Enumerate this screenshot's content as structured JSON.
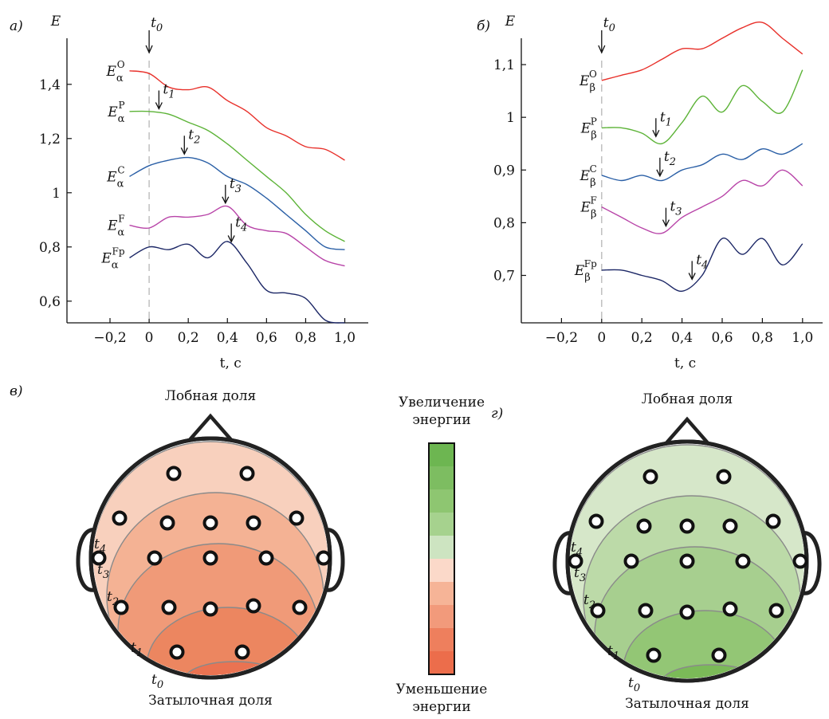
{
  "panels": {
    "a": "а)",
    "b": "б)",
    "c": "в)",
    "d": "г)"
  },
  "t0_label": "t0",
  "chart_data": [
    {
      "id": "a",
      "type": "line",
      "panel_label": "а)",
      "ylabel": "E",
      "xlabel": "t, c",
      "xlim": [
        -0.42,
        1.12
      ],
      "ylim": [
        0.52,
        1.57
      ],
      "x_ticks": [
        -0.2,
        0,
        0.2,
        0.4,
        0.6,
        0.8,
        1.0
      ],
      "x_tick_labels": [
        "−0,2",
        "0",
        "0,2",
        "0,4",
        "0,6",
        "0,8",
        "1,0"
      ],
      "y_ticks": [
        0.6,
        0.8,
        1.0,
        1.2,
        1.4
      ],
      "y_tick_labels": [
        "0,6",
        "0,8",
        "1",
        "1,2",
        "1,4"
      ],
      "x": [
        -0.1,
        0.0,
        0.1,
        0.2,
        0.3,
        0.4,
        0.5,
        0.6,
        0.7,
        0.8,
        0.9,
        1.0
      ],
      "series": [
        {
          "label_base": "E",
          "label_sub": "α",
          "label_sup": "O",
          "color": "#e8302a",
          "values": [
            1.45,
            1.44,
            1.39,
            1.38,
            1.39,
            1.34,
            1.3,
            1.24,
            1.21,
            1.17,
            1.16,
            1.12
          ],
          "marker_label": "",
          "marker_x": null
        },
        {
          "label_base": "E",
          "label_sub": "α",
          "label_sup": "P",
          "color": "#5cb337",
          "values": [
            1.3,
            1.3,
            1.29,
            1.26,
            1.23,
            1.18,
            1.12,
            1.06,
            1.0,
            0.92,
            0.86,
            0.82
          ],
          "marker_label": "t1",
          "marker_x": 0.05
        },
        {
          "label_base": "E",
          "label_sub": "α",
          "label_sup": "C",
          "color": "#2a5fa6",
          "values": [
            1.06,
            1.1,
            1.12,
            1.13,
            1.11,
            1.06,
            1.03,
            0.98,
            0.92,
            0.86,
            0.8,
            0.79
          ],
          "marker_label": "t2",
          "marker_x": 0.18
        },
        {
          "label_base": "E",
          "label_sub": "α",
          "label_sup": "F",
          "color": "#b844a8",
          "values": [
            0.88,
            0.87,
            0.91,
            0.91,
            0.92,
            0.95,
            0.88,
            0.86,
            0.85,
            0.8,
            0.75,
            0.73
          ],
          "marker_label": "t3",
          "marker_x": 0.39
        },
        {
          "label_base": "E",
          "label_sub": "α",
          "label_sup": "Fp",
          "color": "#1c2766",
          "values": [
            0.76,
            0.8,
            0.79,
            0.81,
            0.76,
            0.82,
            0.74,
            0.64,
            0.63,
            0.61,
            0.53,
            0.52
          ],
          "marker_label": "t4",
          "marker_x": 0.42
        }
      ]
    },
    {
      "id": "b",
      "type": "line",
      "panel_label": "б)",
      "ylabel": "E",
      "xlabel": "t, c",
      "xlim": [
        -0.4,
        1.1
      ],
      "ylim": [
        0.61,
        1.15
      ],
      "x_ticks": [
        -0.2,
        0,
        0.2,
        0.4,
        0.6,
        0.8,
        1.0
      ],
      "x_tick_labels": [
        "−0,2",
        "0",
        "0,2",
        "0,4",
        "0,6",
        "0,8",
        "1,0"
      ],
      "y_ticks": [
        0.7,
        0.8,
        0.9,
        1.0,
        1.1
      ],
      "y_tick_labels": [
        "0,7",
        "0,8",
        "0,9",
        "1",
        "1,1"
      ],
      "x": [
        0.0,
        0.1,
        0.2,
        0.3,
        0.4,
        0.5,
        0.6,
        0.7,
        0.8,
        0.9,
        1.0
      ],
      "series": [
        {
          "label_base": "E",
          "label_sub": "β",
          "label_sup": "O",
          "color": "#e8302a",
          "values": [
            1.07,
            1.08,
            1.09,
            1.11,
            1.13,
            1.13,
            1.15,
            1.17,
            1.18,
            1.15,
            1.12
          ],
          "marker_label": "",
          "marker_x": null
        },
        {
          "label_base": "E",
          "label_sub": "β",
          "label_sup": "P",
          "color": "#5cb337",
          "values": [
            0.98,
            0.98,
            0.97,
            0.95,
            0.99,
            1.04,
            1.01,
            1.06,
            1.03,
            1.01,
            1.09
          ],
          "marker_label": "t1",
          "marker_x": 0.27
        },
        {
          "label_base": "E",
          "label_sub": "β",
          "label_sup": "C",
          "color": "#2a5fa6",
          "values": [
            0.89,
            0.88,
            0.89,
            0.88,
            0.9,
            0.91,
            0.93,
            0.92,
            0.94,
            0.93,
            0.95
          ],
          "marker_label": "t2",
          "marker_x": 0.29
        },
        {
          "label_base": "E",
          "label_sub": "β",
          "label_sup": "F",
          "color": "#b844a8",
          "values": [
            0.83,
            0.81,
            0.79,
            0.78,
            0.81,
            0.83,
            0.85,
            0.88,
            0.87,
            0.9,
            0.87
          ],
          "marker_label": "t3",
          "marker_x": 0.32
        },
        {
          "label_base": "E",
          "label_sub": "β",
          "label_sup": "Fp",
          "color": "#1c2766",
          "values": [
            0.71,
            0.71,
            0.7,
            0.69,
            0.67,
            0.7,
            0.77,
            0.74,
            0.77,
            0.72,
            0.76
          ],
          "marker_label": "t4",
          "marker_x": 0.45
        }
      ]
    }
  ],
  "head_maps": [
    {
      "id": "v",
      "panel_label": "в)",
      "top_label": "Лобная доля",
      "bottom_label": "Затылочная доля",
      "palette": [
        "#f8d0bd",
        "#f4b294",
        "#f09a78",
        "#ec8660",
        "#ea7352"
      ],
      "contour_labels": [
        "t4",
        "t3",
        "t2",
        "t1",
        "t0"
      ]
    },
    {
      "id": "g",
      "panel_label": "г)",
      "top_label": "Лобная доля",
      "bottom_label": "Затылочная доля",
      "palette": [
        "#d6e7c9",
        "#bcdaa8",
        "#a7cf8f",
        "#93c675",
        "#7bba58"
      ],
      "contour_labels": [
        "t4",
        "t3",
        "t2",
        "t1",
        "t0"
      ]
    }
  ],
  "colorbar": {
    "top_line1": "Увеличение",
    "top_line2": "энергии",
    "bottom_line1": "Уменьшение",
    "bottom_line2": "энергии",
    "colors": [
      "#6db651",
      "#7dbd61",
      "#8ec671",
      "#a6d28e",
      "#cde4c1",
      "#fbd9c9",
      "#f6b497",
      "#f29a7b",
      "#ee7f5d",
      "#ec6d4b"
    ]
  }
}
